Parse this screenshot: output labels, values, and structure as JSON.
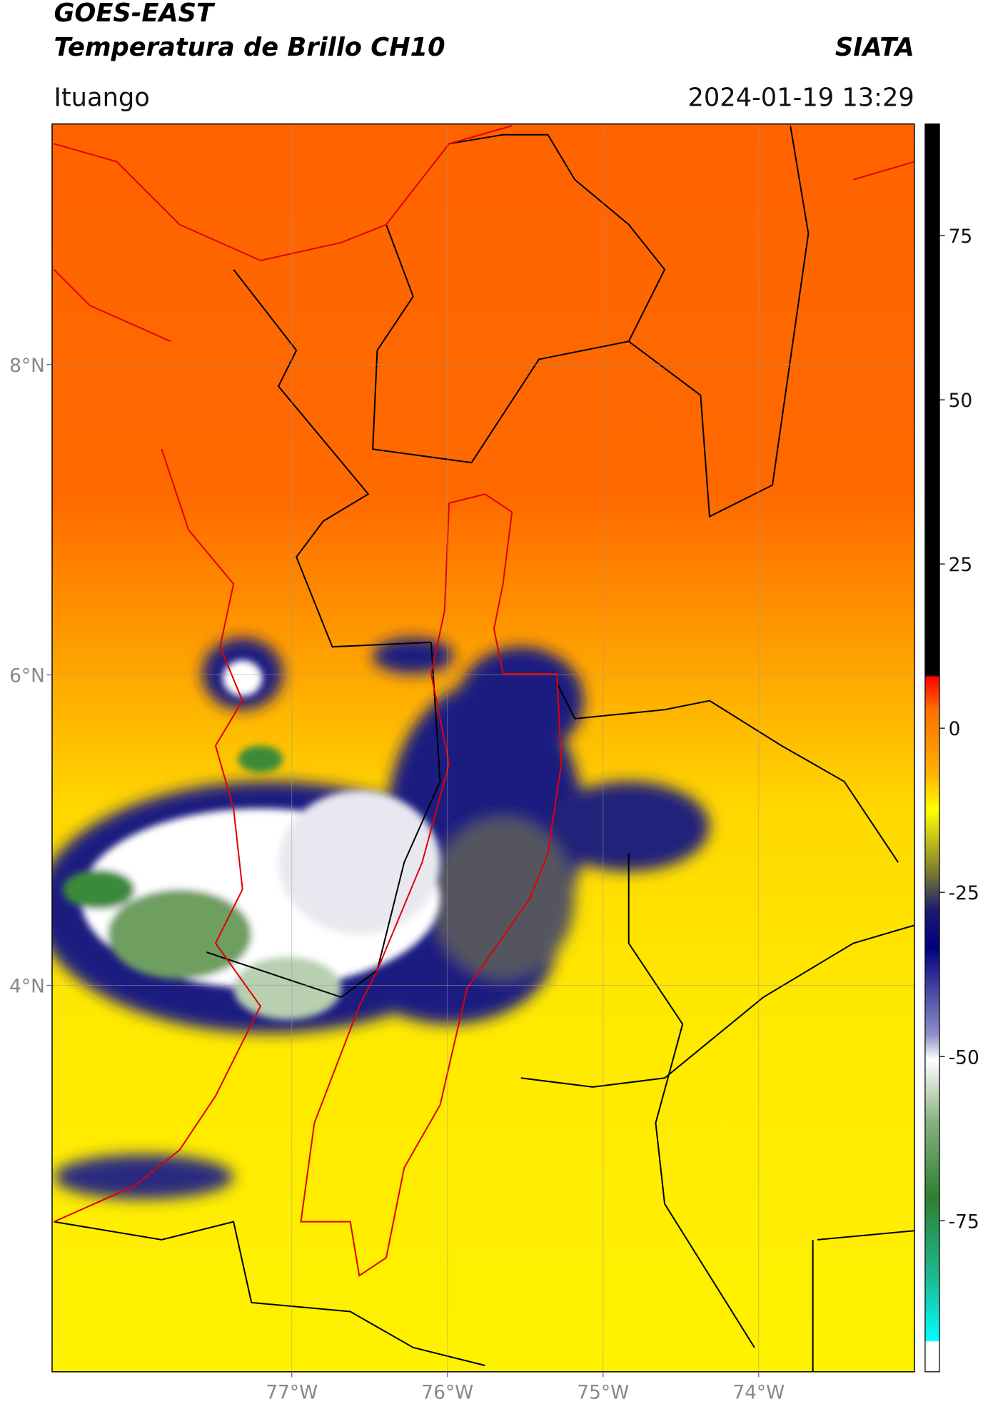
{
  "header": {
    "title": "GOES-EAST",
    "subtitle": "Temperatura de Brillo CH10",
    "brand": "SIATA",
    "location": "Ituango",
    "timestamp": "2024-01-19 13:29"
  },
  "map": {
    "xlim": [
      -78.54,
      -73.0
    ],
    "ylim": [
      1.51,
      9.55
    ],
    "xticks": [
      {
        "value": -77,
        "label": "77°W"
      },
      {
        "value": -76,
        "label": "76°W"
      },
      {
        "value": -75,
        "label": "75°W"
      },
      {
        "value": -74,
        "label": "74°W"
      }
    ],
    "yticks": [
      {
        "value": 8,
        "label": "8°N"
      },
      {
        "value": 6,
        "label": "6°N"
      },
      {
        "value": 4,
        "label": "4°N"
      }
    ],
    "grid": true
  },
  "colorbar": {
    "clim": [
      -98,
      92
    ],
    "ticks": [
      75,
      50,
      25,
      0,
      -25,
      -50,
      -75
    ]
  }
}
